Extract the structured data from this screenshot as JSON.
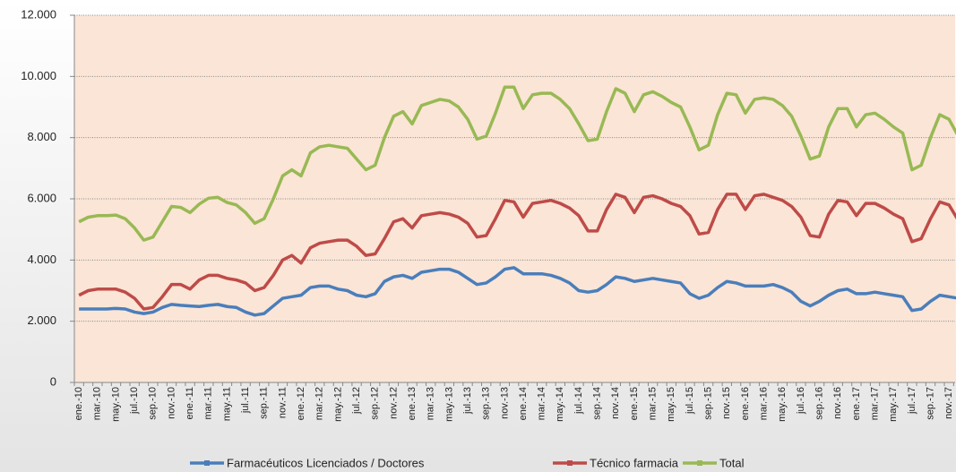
{
  "chart_data": {
    "type": "line",
    "categories": [
      "ene.-10",
      null,
      "mar.-10",
      null,
      "may.-10",
      null,
      "jul.-10",
      null,
      "sep.-10",
      null,
      "nov.-10",
      null,
      "ene.-11",
      null,
      "mar.-11",
      null,
      "may.-11",
      null,
      "jul.-11",
      null,
      "sep.-11",
      null,
      "nov.-11",
      null,
      "ene.-12",
      null,
      "mar.-12",
      null,
      "may.-12",
      null,
      "jul.-12",
      null,
      "sep.-12",
      null,
      "nov.-12",
      null,
      "ene.-13",
      null,
      "mar.-13",
      null,
      "may.-13",
      null,
      "jul.-13",
      null,
      "sep.-13",
      null,
      "nov.-13",
      null,
      "ene.-14",
      null,
      "mar.-14",
      null,
      "may.-14",
      null,
      "jul.-14",
      null,
      "sep.-14",
      null,
      "nov.-14",
      null,
      "ene.-15",
      null,
      "mar.-15",
      null,
      "may.-15",
      null,
      "jul.-15",
      null,
      "sep.-15",
      null,
      "nov.-15",
      null,
      "ene.-16",
      null,
      "mar.-16",
      null,
      "may.-16",
      null,
      "jul.-16",
      null,
      "sep.-16",
      null,
      "nov.-16",
      null,
      "ene.-17",
      null,
      "mar.-17",
      null,
      "may.-17",
      null,
      "jul.-17",
      null,
      "sep.-17",
      null,
      "nov.-17",
      null
    ],
    "series": [
      {
        "name": "Farmacéuticos Licenciados / Doctores",
        "color": "#4a7ebb",
        "values": [
          2400,
          2400,
          2400,
          2400,
          2420,
          2400,
          2300,
          2250,
          2300,
          2450,
          2550,
          2520,
          2500,
          2480,
          2520,
          2550,
          2480,
          2450,
          2300,
          2200,
          2250,
          2500,
          2750,
          2800,
          2850,
          3100,
          3150,
          3150,
          3050,
          3000,
          2850,
          2800,
          2900,
          3300,
          3450,
          3500,
          3400,
          3600,
          3650,
          3700,
          3700,
          3600,
          3400,
          3200,
          3250,
          3450,
          3700,
          3750,
          3550,
          3550,
          3550,
          3500,
          3400,
          3250,
          3000,
          2950,
          3000,
          3200,
          3450,
          3400,
          3300,
          3350,
          3400,
          3350,
          3300,
          3250,
          2900,
          2750,
          2850,
          3100,
          3300,
          3250,
          3150,
          3150,
          3150,
          3200,
          3100,
          2950,
          2650,
          2500,
          2650,
          2850,
          3000,
          3050,
          2900,
          2900,
          2950,
          2900,
          2850,
          2800,
          2350,
          2400,
          2650,
          2850,
          2800,
          2750
        ]
      },
      {
        "name": "Técnico farmacia",
        "color": "#be4b48",
        "values": [
          2850,
          3000,
          3050,
          3050,
          3050,
          2950,
          2750,
          2400,
          2450,
          2800,
          3200,
          3200,
          3050,
          3350,
          3500,
          3500,
          3400,
          3350,
          3250,
          3000,
          3100,
          3500,
          4000,
          4150,
          3900,
          4400,
          4550,
          4600,
          4650,
          4650,
          4450,
          4150,
          4200,
          4700,
          5250,
          5350,
          5050,
          5450,
          5500,
          5550,
          5500,
          5400,
          5200,
          4750,
          4800,
          5350,
          5950,
          5900,
          5400,
          5850,
          5900,
          5950,
          5850,
          5700,
          5450,
          4950,
          4950,
          5650,
          6150,
          6050,
          5550,
          6050,
          6100,
          6000,
          5850,
          5750,
          5450,
          4850,
          4900,
          5650,
          6150,
          6150,
          5650,
          6100,
          6150,
          6050,
          5950,
          5750,
          5400,
          4800,
          4750,
          5500,
          5950,
          5900,
          5450,
          5850,
          5850,
          5700,
          5500,
          5350,
          4600,
          4700,
          5350,
          5900,
          5800,
          5300
        ]
      },
      {
        "name": "Total",
        "color": "#98b954",
        "values": [
          5250,
          5400,
          5450,
          5450,
          5470,
          5350,
          5050,
          4650,
          4750,
          5250,
          5750,
          5720,
          5550,
          5830,
          6020,
          6050,
          5880,
          5800,
          5550,
          5200,
          5350,
          6000,
          6750,
          6950,
          6750,
          7500,
          7700,
          7750,
          7700,
          7650,
          7300,
          6950,
          7100,
          8000,
          8700,
          8850,
          8450,
          9050,
          9150,
          9250,
          9200,
          9000,
          8600,
          7950,
          8050,
          8800,
          9650,
          9650,
          8950,
          9400,
          9450,
          9450,
          9250,
          8950,
          8450,
          7900,
          7950,
          8850,
          9600,
          9450,
          8850,
          9400,
          9500,
          9350,
          9150,
          9000,
          8350,
          7600,
          7750,
          8750,
          9450,
          9400,
          8800,
          9250,
          9300,
          9250,
          9050,
          8700,
          8050,
          7300,
          7400,
          8350,
          8950,
          8950,
          8350,
          8750,
          8800,
          8600,
          8350,
          8150,
          6950,
          7100,
          8000,
          8750,
          8600,
          8050
        ]
      }
    ],
    "ylim": [
      0,
      12000
    ],
    "yticks": [
      0,
      {
        "value": 2000,
        "label": "2.000"
      },
      {
        "value": 4000,
        "label": "4.000"
      },
      {
        "value": 6000,
        "label": "6.000"
      },
      {
        "value": 8000,
        "label": "8.000"
      },
      {
        "value": 10000,
        "label": "10.000"
      },
      {
        "value": 12000,
        "label": "12.000"
      }
    ],
    "grid": true,
    "legend": "bottom",
    "plot_background": "#fbe5d6"
  }
}
